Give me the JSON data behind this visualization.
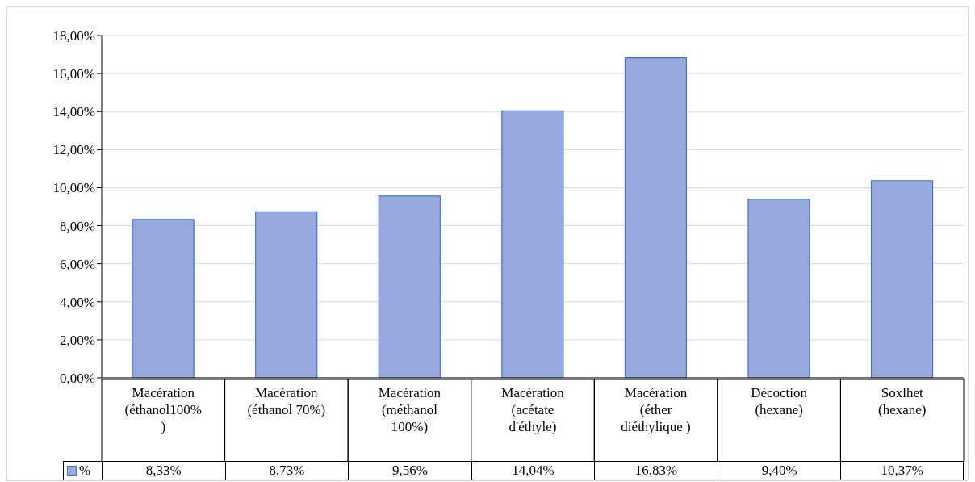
{
  "chart_data": {
    "type": "bar",
    "categories": [
      "Macération (éthanol100% )",
      "Macération (éthanol 70%)",
      "Macération (méthanol 100%)",
      "Macération (acétate d'éthyle)",
      "Macération (éther diéthylique )",
      "Décoction (hexane)",
      "Soxlhet (hexane)"
    ],
    "series": [
      {
        "name": "%",
        "color": "#97a9dc",
        "values": [
          8.33,
          8.73,
          9.56,
          14.04,
          16.83,
          9.4,
          10.37
        ],
        "value_labels": [
          "8,33%",
          "8,73%",
          "9,56%",
          "14,04%",
          "16,83%",
          "9,40%",
          "10,37%"
        ]
      }
    ],
    "ylim": [
      0,
      18
    ],
    "yticks": [
      {
        "value": 0,
        "label": "0,00%"
      },
      {
        "value": 2,
        "label": "2,00%"
      },
      {
        "value": 4,
        "label": "4,00%"
      },
      {
        "value": 6,
        "label": "6,00%"
      },
      {
        "value": 8,
        "label": "8,00%"
      },
      {
        "value": 10,
        "label": "10,00%"
      },
      {
        "value": 12,
        "label": "12,00%"
      },
      {
        "value": 14,
        "label": "14,00%"
      },
      {
        "value": 16,
        "label": "16,00%"
      },
      {
        "value": 18,
        "label": "18,00%"
      }
    ],
    "grid": "y",
    "legend": "bottom"
  }
}
